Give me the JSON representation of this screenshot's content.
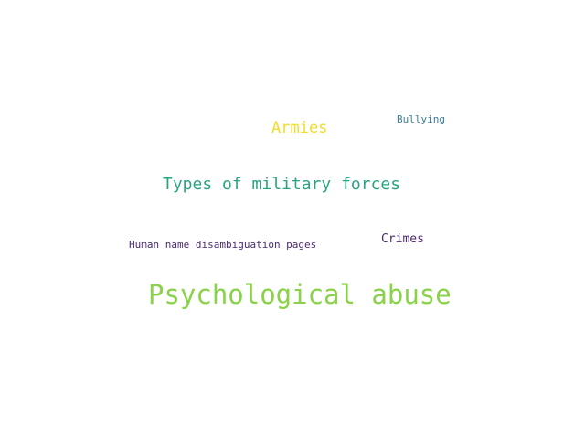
{
  "wordcloud": {
    "background": "#ffffff",
    "words": [
      {
        "text": "Armies",
        "color": "#f0dd2a"
      },
      {
        "text": "Bullying",
        "color": "#3a7f9a"
      },
      {
        "text": "Types of military forces",
        "color": "#2aa382"
      },
      {
        "text": "Crimes",
        "color": "#4b2a72"
      },
      {
        "text": "Human name disambiguation pages",
        "color": "#4b2a72"
      },
      {
        "text": "Psychological abuse",
        "color": "#8bd24b"
      }
    ]
  }
}
